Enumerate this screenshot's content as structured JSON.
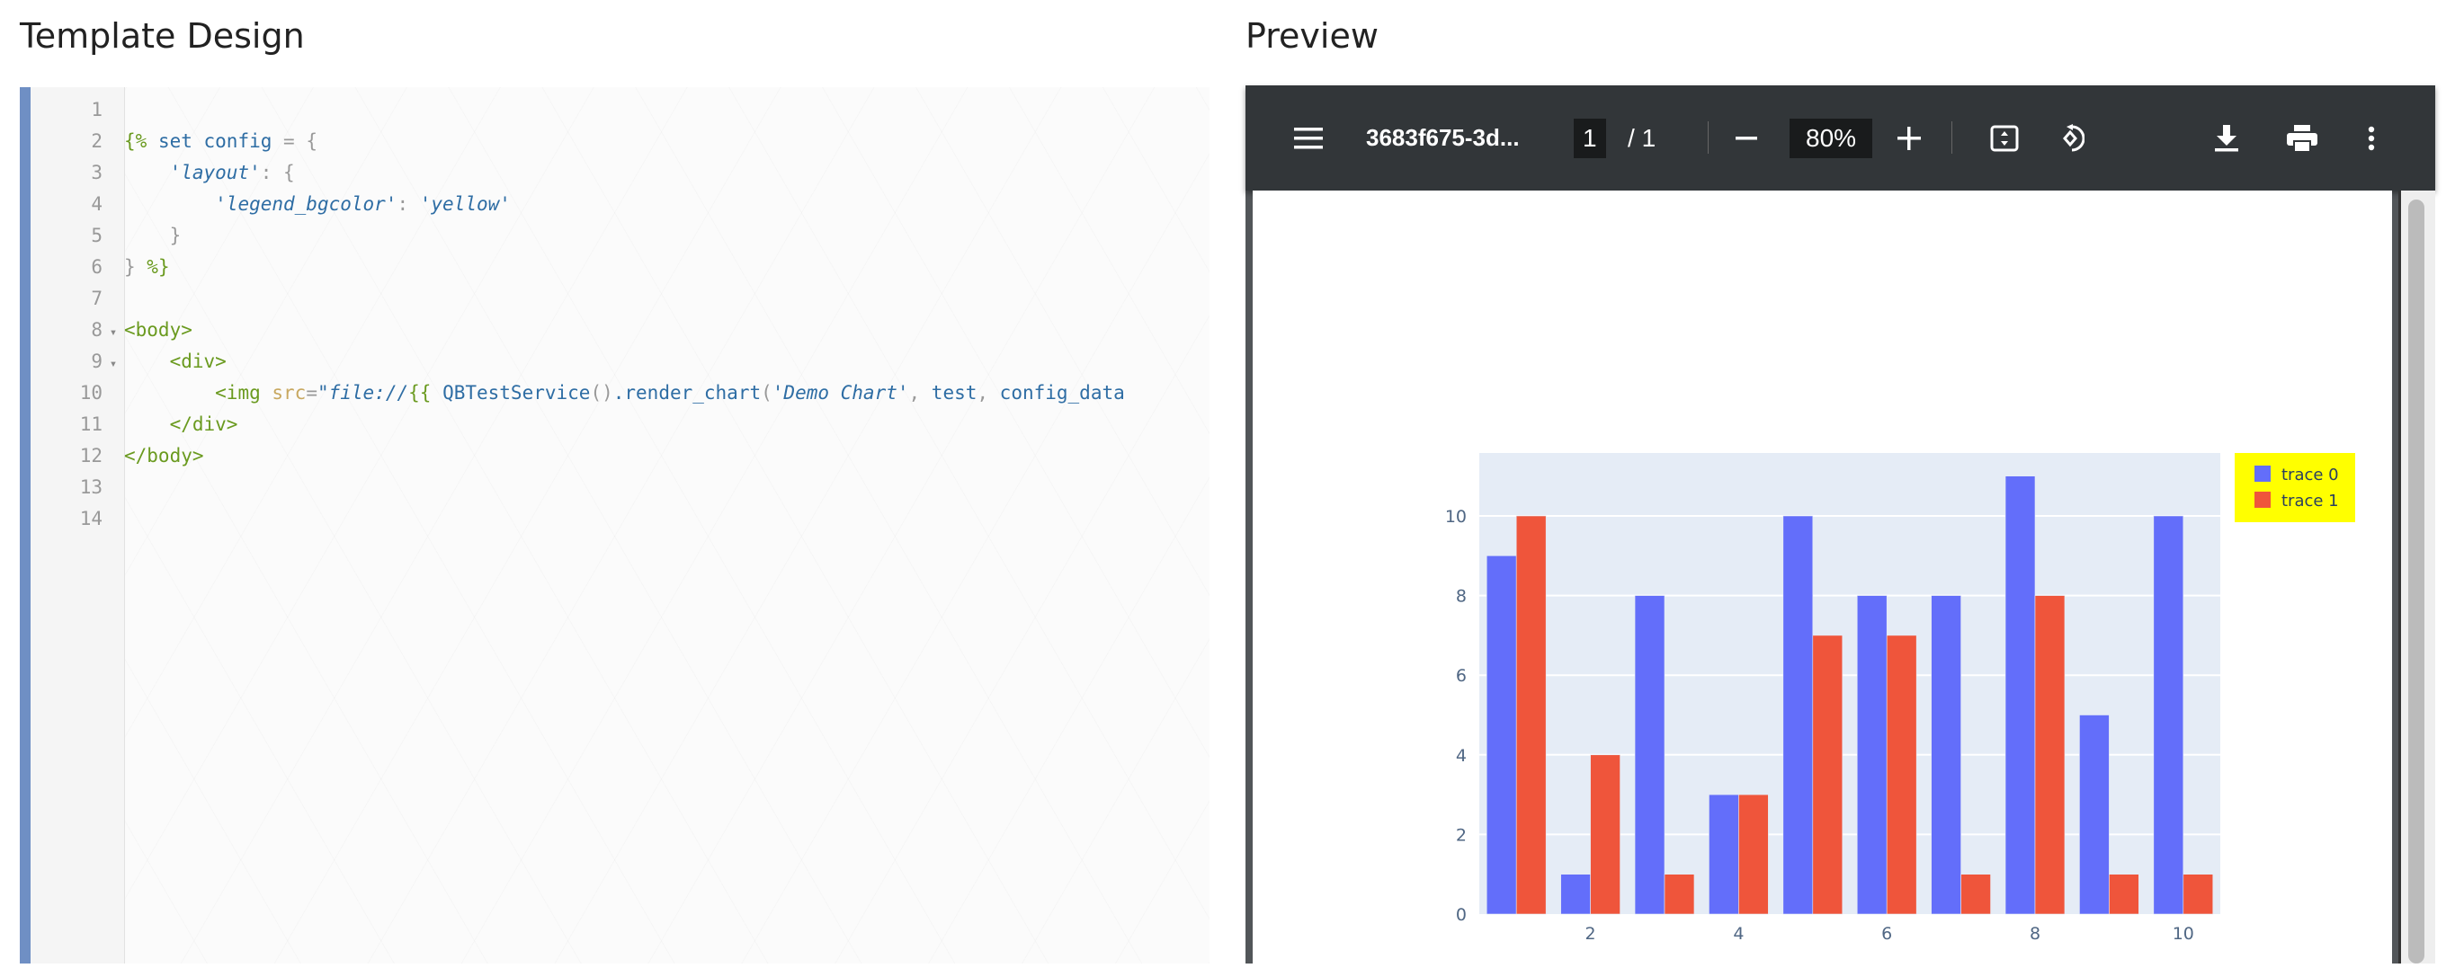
{
  "left_title": "Template Design",
  "right_title": "Preview",
  "editor": {
    "lines": [
      {
        "n": "1",
        "fold": false,
        "tokens": []
      },
      {
        "n": "2",
        "fold": false,
        "tokens": [
          [
            "g",
            "{%"
          ],
          [
            "d",
            " "
          ],
          [
            "b",
            "set config"
          ],
          [
            "p",
            " = {"
          ]
        ]
      },
      {
        "n": "3",
        "fold": false,
        "tokens": [
          [
            "d",
            "    "
          ],
          [
            "i",
            "'layout'"
          ],
          [
            "p",
            ": {"
          ]
        ]
      },
      {
        "n": "4",
        "fold": false,
        "tokens": [
          [
            "d",
            "        "
          ],
          [
            "i",
            "'legend_bgcolor'"
          ],
          [
            "p",
            ": "
          ],
          [
            "i",
            "'yellow'"
          ]
        ]
      },
      {
        "n": "5",
        "fold": false,
        "tokens": [
          [
            "d",
            "    "
          ],
          [
            "p",
            "}"
          ]
        ]
      },
      {
        "n": "6",
        "fold": false,
        "tokens": [
          [
            "p",
            "} "
          ],
          [
            "g",
            "%}"
          ]
        ]
      },
      {
        "n": "7",
        "fold": false,
        "tokens": []
      },
      {
        "n": "8",
        "fold": true,
        "tokens": [
          [
            "g",
            "<body>"
          ]
        ]
      },
      {
        "n": "9",
        "fold": true,
        "tokens": [
          [
            "d",
            "    "
          ],
          [
            "g",
            "<div>"
          ]
        ]
      },
      {
        "n": "10",
        "fold": false,
        "tokens": [
          [
            "d",
            "        "
          ],
          [
            "g",
            "<img "
          ],
          [
            "y",
            "src"
          ],
          [
            "p",
            "="
          ],
          [
            "i",
            "\"file://"
          ],
          [
            "g",
            "{{"
          ],
          [
            "d",
            " "
          ],
          [
            "b",
            "QBTestService"
          ],
          [
            "p",
            "()"
          ],
          [
            "b",
            ".render_chart"
          ],
          [
            "p",
            "("
          ],
          [
            "i",
            "'Demo Chart'"
          ],
          [
            "p",
            ", "
          ],
          [
            "b",
            "test"
          ],
          [
            "p",
            ", "
          ],
          [
            "b",
            "config_data"
          ]
        ]
      },
      {
        "n": "11",
        "fold": false,
        "tokens": [
          [
            "d",
            "    "
          ],
          [
            "g",
            "</div>"
          ]
        ]
      },
      {
        "n": "12",
        "fold": false,
        "tokens": [
          [
            "g",
            "</body>"
          ]
        ]
      },
      {
        "n": "13",
        "fold": false,
        "tokens": []
      },
      {
        "n": "14",
        "fold": false,
        "tokens": []
      }
    ]
  },
  "viewer": {
    "filename": "3683f675-3d...",
    "page_current": "1",
    "page_sep": "/",
    "page_total": "1",
    "zoom": "80%",
    "icons": [
      "menu-icon",
      "zoom-out-icon",
      "zoom-in-icon",
      "fit-page-icon",
      "rotate-icon",
      "download-icon",
      "print-icon",
      "more-icon"
    ]
  },
  "chart_data": {
    "type": "bar",
    "x": [
      1,
      2,
      3,
      4,
      5,
      6,
      7,
      8,
      9,
      10
    ],
    "series": [
      {
        "name": "trace 0",
        "color": "#636efa",
        "values": [
          9,
          1,
          8,
          3,
          10,
          8,
          8,
          11,
          5,
          10
        ]
      },
      {
        "name": "trace 1",
        "color": "#ef553b",
        "values": [
          10,
          4,
          1,
          3,
          7,
          7,
          1,
          8,
          1,
          1
        ]
      }
    ],
    "xticks": [
      "2",
      "4",
      "6",
      "8",
      "10"
    ],
    "yticks": [
      "0",
      "2",
      "4",
      "6",
      "8",
      "10"
    ],
    "xlim": [
      0.5,
      10.5
    ],
    "ylim": [
      0,
      11.58
    ],
    "grid": true,
    "plot_bgcolor": "#e5ecf6",
    "legend_bgcolor": "yellow",
    "legend_placement": "top-right outside"
  }
}
